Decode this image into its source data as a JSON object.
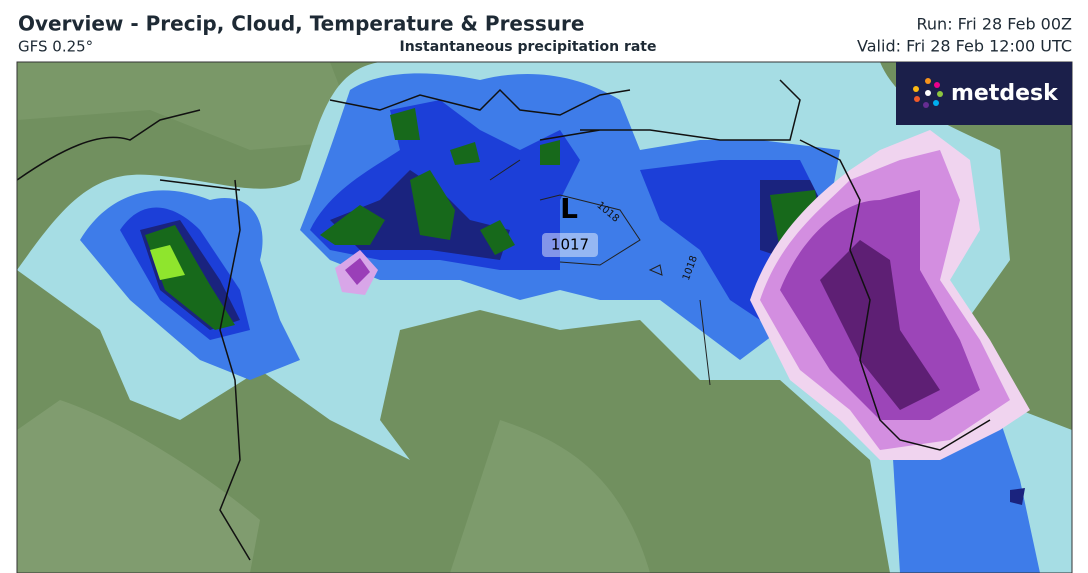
{
  "header": {
    "title": "Overview - Precip, Cloud, Temperature & Pressure",
    "model": "GFS 0.25°",
    "subtitle": "Instantaneous precipitation rate",
    "run": "Run: Fri 28 Feb 00Z",
    "valid": "Valid: Fri 28 Feb 12:00 UTC"
  },
  "logo": {
    "text": "metdesk"
  },
  "map": {
    "low_label": "L",
    "low_pressure": "1017",
    "isobar_labels": [
      "1018",
      "1018"
    ]
  }
}
